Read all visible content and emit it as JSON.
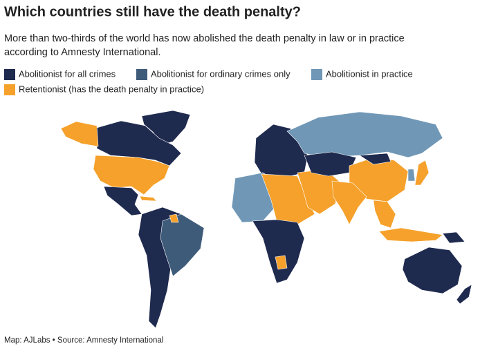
{
  "header": {
    "title": "Which countries still have the death penalty?",
    "subtitle": [
      "More than two-thirds of the world has now abolished the death penalty in law or in practice",
      "according to Amnesty International."
    ]
  },
  "legend": [
    {
      "label": "Abolitionist for all crimes",
      "color": "#1f2a4f"
    },
    {
      "label": "Abolitionist for ordinary crimes only",
      "color": "#3f5b7a"
    },
    {
      "label": "Abolitionist in practice",
      "color": "#7097b6"
    },
    {
      "label": "Retentionist (has the death penalty in practice)",
      "color": "#f5a12b"
    }
  ],
  "footer": "Map: AJLabs • Source: Amnesty International"
}
